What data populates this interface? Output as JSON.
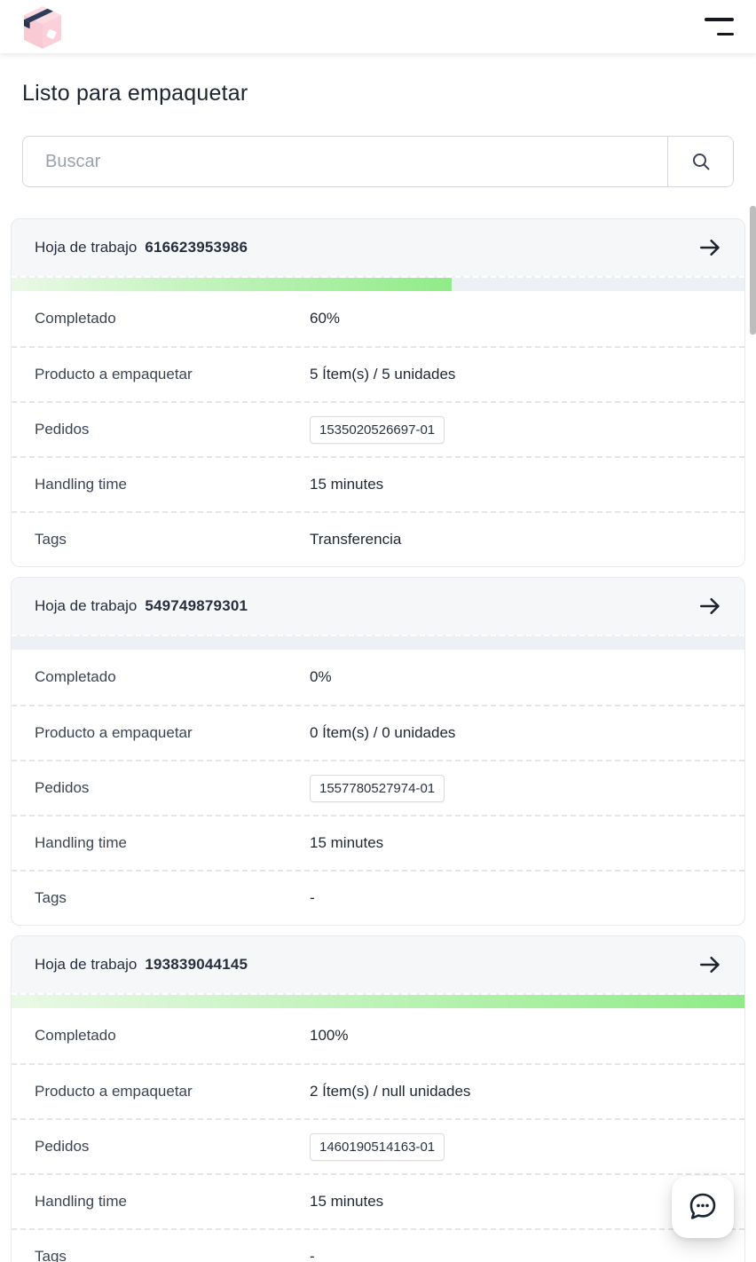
{
  "page": {
    "title": "Listo para empaquetar"
  },
  "header": {
    "logo_icon": "pink-package-box",
    "menu_icon": "hamburger-menu"
  },
  "search": {
    "placeholder": "Buscar",
    "icon": "magnifier"
  },
  "cards": [
    {
      "title_label": "Hoja de trabajo",
      "worksheet_id": "616623953986",
      "action_icon": "arrow-right",
      "progress_percent": 60,
      "rows": [
        {
          "label": "Completado",
          "value": "60%"
        },
        {
          "label": "Producto a empaquetar",
          "value": "5 Ítem(s) / 5 unidades"
        },
        {
          "label": "Pedidos",
          "value": "1535020526697-01"
        },
        {
          "label": "Handling time",
          "value": "15 minutes"
        },
        {
          "label": "Tags",
          "value": "Transferencia"
        }
      ]
    },
    {
      "title_label": "Hoja de trabajo",
      "worksheet_id": "549749879301",
      "action_icon": "arrow-right",
      "progress_percent": 0,
      "rows": [
        {
          "label": "Completado",
          "value": "0%"
        },
        {
          "label": "Producto a empaquetar",
          "value": "0 Ítem(s) / 0 unidades"
        },
        {
          "label": "Pedidos",
          "value": "1557780527974-01"
        },
        {
          "label": "Handling time",
          "value": "15 minutes"
        },
        {
          "label": "Tags",
          "value": "-"
        }
      ]
    },
    {
      "title_label": "Hoja de trabajo",
      "worksheet_id": "193839044145",
      "action_icon": "arrow-right",
      "progress_percent": 100,
      "rows": [
        {
          "label": "Completado",
          "value": "100%"
        },
        {
          "label": "Producto a empaquetar",
          "value": "2 Ítem(s) / null unidades"
        },
        {
          "label": "Pedidos",
          "value": "1460190514163-01"
        },
        {
          "label": "Handling time",
          "value": "15 minutes"
        },
        {
          "label": "Tags",
          "value": "-"
        }
      ]
    }
  ],
  "chat": {
    "icon": "speech-bubble-ellipsis"
  },
  "colors": {
    "progress_gradient_from": "#eaf9e6",
    "progress_gradient_to": "#8fec87",
    "progress_track": "#edf1f6",
    "brand_pink": "#f9cad3",
    "brand_navy": "#2e3c59",
    "text_dark": "#1f2631"
  }
}
